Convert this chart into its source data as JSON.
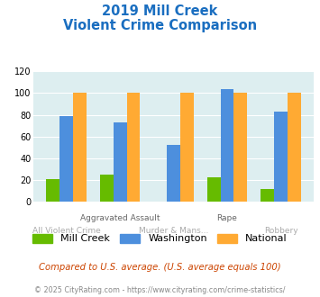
{
  "title_line1": "2019 Mill Creek",
  "title_line2": "Violent Crime Comparison",
  "mill_creek": [
    21,
    25,
    0,
    23,
    12
  ],
  "washington": [
    79,
    73,
    52,
    104,
    83
  ],
  "national": [
    100,
    100,
    100,
    100,
    100
  ],
  "mill_creek_color": "#66bb00",
  "washington_color": "#4d8fdd",
  "national_color": "#ffaa33",
  "ylim": [
    0,
    120
  ],
  "yticks": [
    0,
    20,
    40,
    60,
    80,
    100,
    120
  ],
  "background_color": "#ddeef0",
  "title_color": "#1a6ec0",
  "top_labels": {
    "1": "Aggravated Assault",
    "3": "Rape"
  },
  "bottom_labels": {
    "0": "All Violent Crime",
    "2": "Murder & Mans...",
    "4": "Robbery"
  },
  "top_label_color": "#666666",
  "bottom_label_color": "#aaaaaa",
  "legend_labels": [
    "Mill Creek",
    "Washington",
    "National"
  ],
  "footnote1": "Compared to U.S. average. (U.S. average equals 100)",
  "footnote2": "© 2025 CityRating.com - https://www.cityrating.com/crime-statistics/",
  "footnote1_color": "#cc4400",
  "footnote2_color": "#888888",
  "grid_color": "#ffffff",
  "bar_width": 0.25
}
